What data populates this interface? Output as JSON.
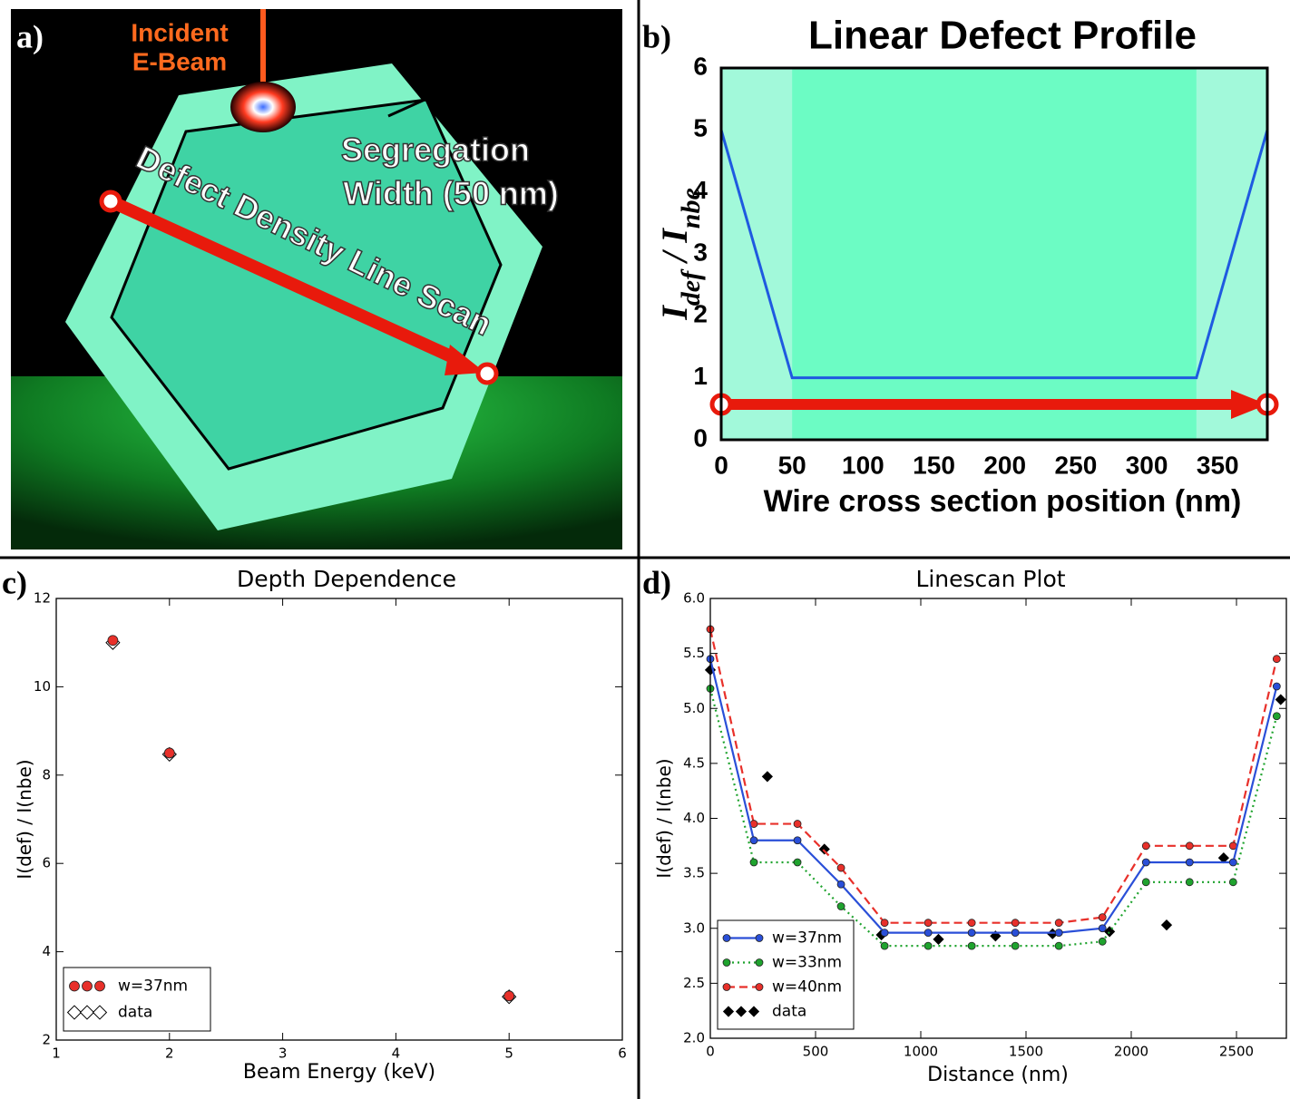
{
  "panel_labels": [
    "a)",
    "b)",
    "c)",
    "d)"
  ],
  "illustration": {
    "labels": [
      "Incident",
      "E-Beam",
      "Segregation",
      "Width (50 nm)",
      "Defect Density Line Scan"
    ]
  },
  "chart_data": [
    {
      "type": "line",
      "title": "Linear Defect Profile",
      "xlabel": "Wire cross section position (nm)",
      "ylabel": [
        "I",
        "def",
        " / I",
        "nbe"
      ],
      "xlim": [
        0,
        385
      ],
      "ylim": [
        0,
        6
      ],
      "xticks": [
        0,
        50,
        100,
        150,
        200,
        250,
        300,
        350
      ],
      "yticks": [
        0,
        1,
        2,
        3,
        4,
        5,
        6
      ],
      "background": "#6cfcc4",
      "edge_color": "#a2f9da",
      "edge_regions": [
        [
          0,
          50
        ],
        [
          335,
          385
        ]
      ],
      "series": [
        {
          "color": "#1f5ae0",
          "linestyle": "solid",
          "x": [
            0,
            50,
            335,
            385
          ],
          "values": [
            5,
            1,
            1,
            5
          ]
        }
      ]
    },
    {
      "type": "scatter",
      "title": "Depth Dependence",
      "xlabel": "Beam Energy (keV)",
      "ylabel": [
        "I(def) / I(nbe)"
      ],
      "xlim": [
        1,
        6
      ],
      "ylim": [
        2,
        12
      ],
      "xticks": [
        1,
        2,
        3,
        4,
        5,
        6
      ],
      "yticks": [
        2,
        4,
        6,
        8,
        10,
        12
      ],
      "legend": "lower left",
      "series": [
        {
          "name": "w=37nm",
          "color": "#e8302a",
          "marker": "circle",
          "linestyle": "none",
          "x": [
            1.5,
            2,
            5
          ],
          "values": [
            11.05,
            8.5,
            3.0
          ]
        },
        {
          "name": "data",
          "color": "#ffffff",
          "marker": "diamond",
          "linestyle": "none",
          "x": [
            1.5,
            2,
            5
          ],
          "values": [
            11.0,
            8.47,
            2.98
          ]
        }
      ]
    },
    {
      "type": "line",
      "title": "Linescan Plot",
      "xlabel": "Distance (nm)",
      "ylabel": [
        "I(def) / I(nbe)"
      ],
      "xlim": [
        0,
        2737
      ],
      "ylim": [
        2,
        6
      ],
      "xticks": [
        0,
        500,
        1000,
        1500,
        2000,
        2500
      ],
      "yticks": [
        {
          "value": 2,
          "label": "2.0"
        },
        2.5,
        {
          "value": 3,
          "label": "3.0"
        },
        3.5,
        {
          "value": 4,
          "label": "4.0"
        },
        4.5,
        {
          "value": 5,
          "label": "5.0"
        },
        5.5,
        {
          "value": 6,
          "label": "6.0"
        }
      ],
      "legend": "lower left",
      "series": [
        {
          "name": "w=37nm",
          "color": "#2a4fd8",
          "marker": "circle",
          "linestyle": "solid",
          "x": [
            0,
            207,
            414,
            621,
            828,
            1035,
            1242,
            1449,
            1656,
            1863,
            2070,
            2277,
            2484,
            2691
          ],
          "values": [
            5.45,
            3.8,
            3.8,
            3.4,
            2.96,
            2.96,
            2.96,
            2.96,
            2.96,
            3.0,
            3.6,
            3.6,
            3.6,
            5.2
          ]
        },
        {
          "name": "w=33nm",
          "color": "#1fa32e",
          "marker": "circle",
          "linestyle": "dotted",
          "x": [
            0,
            207,
            414,
            621,
            828,
            1035,
            1242,
            1449,
            1656,
            1863,
            2070,
            2277,
            2484,
            2691
          ],
          "values": [
            5.18,
            3.6,
            3.6,
            3.2,
            2.84,
            2.84,
            2.84,
            2.84,
            2.84,
            2.88,
            3.42,
            3.42,
            3.42,
            4.93
          ]
        },
        {
          "name": "w=40nm",
          "color": "#e8302a",
          "marker": "circle",
          "linestyle": "dashed",
          "x": [
            0,
            207,
            414,
            621,
            828,
            1035,
            1242,
            1449,
            1656,
            1863,
            2070,
            2277,
            2484,
            2691
          ],
          "values": [
            5.72,
            3.95,
            3.95,
            3.55,
            3.05,
            3.05,
            3.05,
            3.05,
            3.05,
            3.1,
            3.75,
            3.75,
            3.75,
            5.45
          ]
        },
        {
          "name": "data",
          "color": "#000000",
          "marker": "diamond",
          "linestyle": "none",
          "x": [
            0,
            271,
            542,
            813,
            1084,
            1355,
            1626,
            1897,
            2168,
            2439,
            2710
          ],
          "values": [
            5.35,
            4.38,
            3.72,
            2.94,
            2.9,
            2.93,
            2.95,
            2.97,
            3.03,
            3.64,
            5.08
          ]
        }
      ]
    }
  ]
}
